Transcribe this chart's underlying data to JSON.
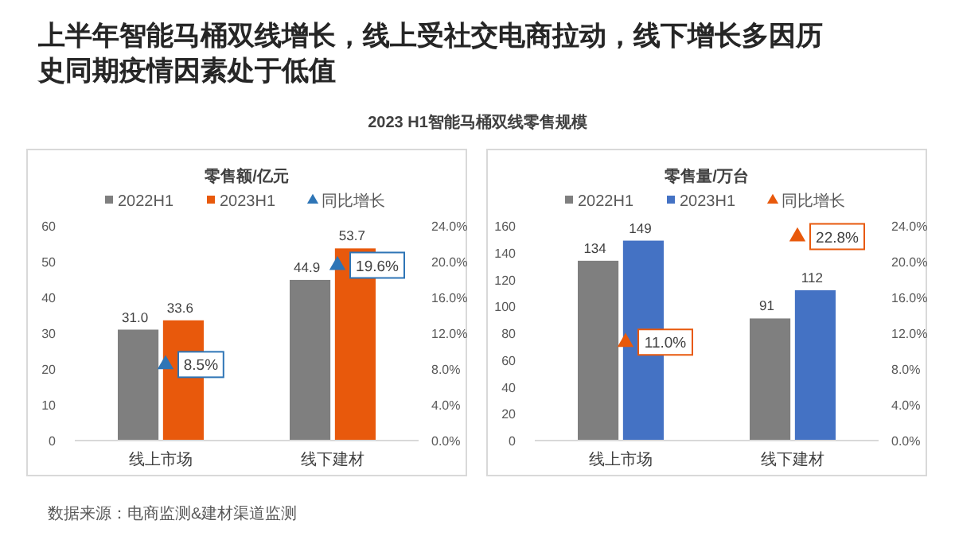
{
  "chart_data": [
    {
      "type": "bar",
      "title": "零售额/亿元",
      "categories": [
        "线上市场",
        "线下建材"
      ],
      "annotations": [
        "上半年智能马桶双线增长，线上受社交电商拉动，线下增长多因历史同期疫情因素处于低值",
        "2023 H1智能马桶双线零售规模",
        "数据来源：电商监测&建材渠道监测"
      ],
      "series": [
        {
          "name": "2022H1",
          "color": "#7f7f7f",
          "values": [
            31.0,
            44.9
          ],
          "value_labels": [
            "31.0",
            "44.9"
          ]
        },
        {
          "name": "2023H1",
          "color": "#e8590c",
          "values": [
            33.6,
            53.7
          ],
          "value_labels": [
            "33.6",
            "53.7"
          ]
        },
        {
          "name": "同比增长",
          "type": "scatter",
          "axis": "y2",
          "color": "#2e75b6",
          "values": [
            8.5,
            19.6
          ],
          "value_labels": [
            "8.5%",
            "19.6%"
          ]
        }
      ],
      "marker": "triangle",
      "legend": "top",
      "grid": false,
      "ylim": [
        0,
        60
      ],
      "yticks": [
        0,
        10,
        20,
        30,
        40,
        50,
        60
      ],
      "y2lim": [
        0,
        24
      ],
      "y2ticks": [
        {
          "value": 0,
          "label": "0.0%"
        },
        {
          "value": 4,
          "label": "4.0%"
        },
        {
          "value": 8,
          "label": "8.0%"
        },
        {
          "value": 12,
          "label": "12.0%"
        },
        {
          "value": 16,
          "label": "16.0%"
        },
        {
          "value": 20,
          "label": "20.0%"
        },
        {
          "value": 24,
          "label": "24.0%"
        }
      ]
    },
    {
      "type": "bar",
      "title": "零售量/万台",
      "categories": [
        "线上市场",
        "线下建材"
      ],
      "series": [
        {
          "name": "2022H1",
          "color": "#7f7f7f",
          "values": [
            134,
            91
          ],
          "value_labels": [
            "134",
            "91"
          ]
        },
        {
          "name": "2023H1",
          "color": "#4472c4",
          "values": [
            149,
            112
          ],
          "value_labels": [
            "149",
            "112"
          ]
        },
        {
          "name": "同比增长",
          "type": "scatter",
          "axis": "y2",
          "color": "#e8590c",
          "values": [
            11.0,
            22.8
          ],
          "value_labels": [
            "11.0%",
            "22.8%"
          ]
        }
      ],
      "marker": "triangle",
      "legend": "top",
      "grid": false,
      "ylim": [
        0,
        160
      ],
      "yticks": [
        0,
        20,
        40,
        60,
        80,
        100,
        120,
        140,
        160
      ],
      "y2lim": [
        0,
        24
      ],
      "y2ticks": [
        {
          "value": 0,
          "label": "0.0%"
        },
        {
          "value": 4,
          "label": "4.0%"
        },
        {
          "value": 8,
          "label": "8.0%"
        },
        {
          "value": 12,
          "label": "12.0%"
        },
        {
          "value": 16,
          "label": "16.0%"
        },
        {
          "value": 20,
          "label": "20.0%"
        },
        {
          "value": 24,
          "label": "24.0%"
        }
      ]
    }
  ]
}
